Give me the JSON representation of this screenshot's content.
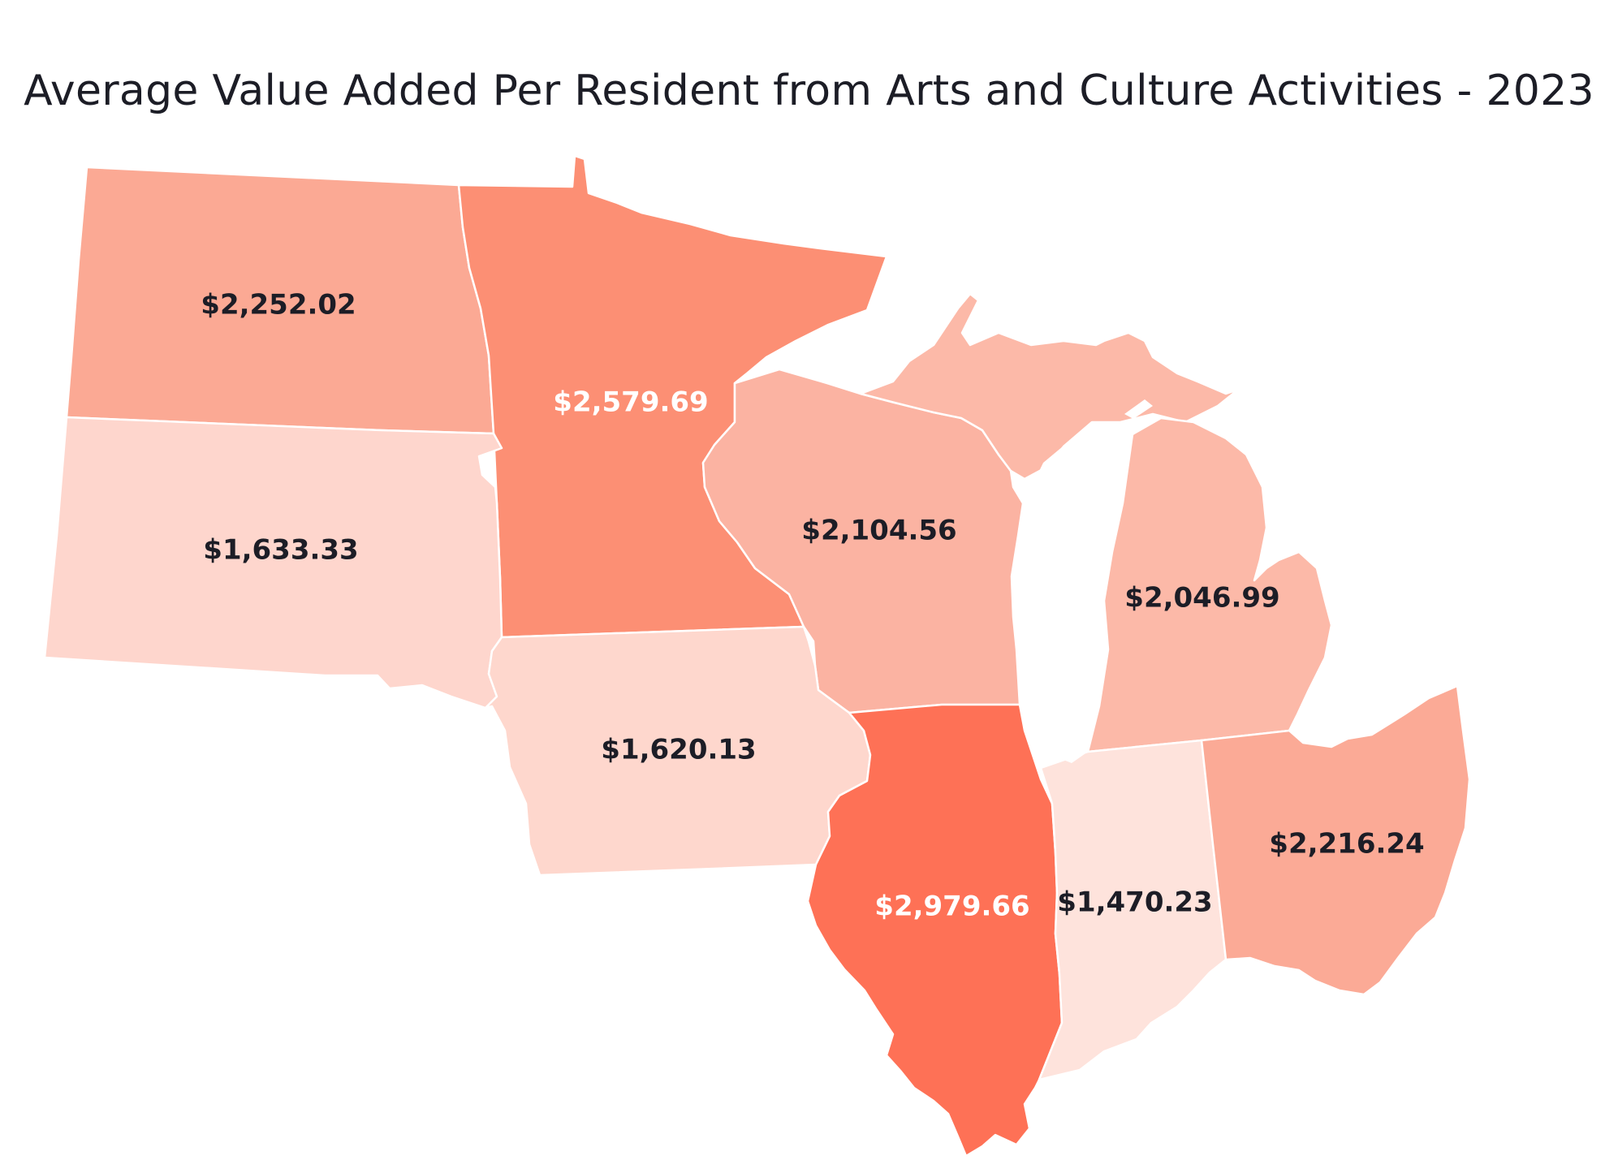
{
  "title": "Average Value Added Per Resident from Arts and Culture Activities - 2023",
  "states": [
    {
      "id": "north-dakota",
      "value": 2252.02,
      "label": "$2,252.02",
      "fill": "#fba994",
      "text_color": "#1c1d26"
    },
    {
      "id": "minnesota",
      "value": 2579.69,
      "label": "$2,579.69",
      "fill": "#fc8f74",
      "text_color": "#ffffff"
    },
    {
      "id": "south-dakota",
      "value": 1633.33,
      "label": "$1,633.33",
      "fill": "#fed6cd",
      "text_color": "#1c1d26"
    },
    {
      "id": "wisconsin",
      "value": 2104.56,
      "label": "$2,104.56",
      "fill": "#fbb3a2",
      "text_color": "#1c1d26"
    },
    {
      "id": "michigan",
      "value": 2046.99,
      "label": "$2,046.99",
      "fill": "#fcb9a8",
      "text_color": "#1c1d26"
    },
    {
      "id": "iowa",
      "value": 1620.13,
      "label": "$1,620.13",
      "fill": "#fed7cd",
      "text_color": "#1c1d26"
    },
    {
      "id": "illinois",
      "value": 2979.66,
      "label": "$2,979.66",
      "fill": "#fe7156",
      "text_color": "#ffffff"
    },
    {
      "id": "indiana",
      "value": 1470.23,
      "label": "$1,470.23",
      "fill": "#fee3dc",
      "text_color": "#1c1d26"
    },
    {
      "id": "ohio",
      "value": 2216.24,
      "label": "$2,216.24",
      "fill": "#fbaa96",
      "text_color": "#1c1d26"
    }
  ]
}
